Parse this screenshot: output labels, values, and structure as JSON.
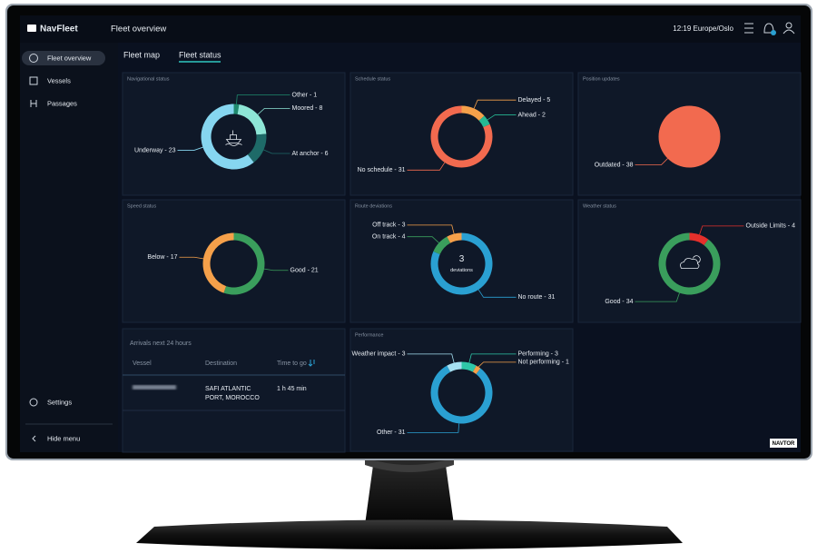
{
  "header": {
    "brand": "NavFleet",
    "page_title": "Fleet overview",
    "time": "12:19 Europe/Oslo"
  },
  "sidebar": {
    "items": [
      "Fleet overview",
      "Vessels",
      "Passages"
    ],
    "settings": "Settings",
    "hide_menu": "Hide menu"
  },
  "tabs": [
    "Fleet map",
    "Fleet status"
  ],
  "panels": [
    {
      "title": "Navigational status",
      "type": "donut",
      "segments": [
        {
          "label": "Other - 1",
          "value": 1,
          "color": "#1f8a6e"
        },
        {
          "label": "Moored - 8",
          "value": 8,
          "color": "#8ee6d6"
        },
        {
          "label": "At anchor - 6",
          "value": 6,
          "color": "#1e6a68"
        },
        {
          "label": "Underway - 23",
          "value": 23,
          "color": "#86d6f0"
        }
      ]
    },
    {
      "title": "Schedule status",
      "type": "donut",
      "segments": [
        {
          "label": "Delayed - 5",
          "value": 5,
          "color": "#f5a04a"
        },
        {
          "label": "Ahead - 2",
          "value": 2,
          "color": "#26b893"
        },
        {
          "label": "No schedule - 31",
          "value": 31,
          "color": "#f26a4f"
        }
      ]
    },
    {
      "title": "Position updates",
      "type": "pie",
      "segments": [
        {
          "label": "Outdated - 38",
          "value": 38,
          "color": "#f26a4f"
        }
      ]
    },
    {
      "title": "Speed status",
      "type": "donut",
      "segments": [
        {
          "label": "Good - 21",
          "value": 21,
          "color": "#3a9e5c"
        },
        {
          "label": "Below - 17",
          "value": 17,
          "color": "#f5a04a"
        }
      ]
    },
    {
      "title": "Route deviations",
      "type": "donut",
      "center_value": 3,
      "center_label": "deviations",
      "segments": [
        {
          "label": "No route - 31",
          "value": 31,
          "color": "#2aa0d2"
        },
        {
          "label": "On track - 4",
          "value": 4,
          "color": "#3a9e5c"
        },
        {
          "label": "Off track - 3",
          "value": 3,
          "color": "#f5a04a"
        }
      ]
    },
    {
      "title": "Weather status",
      "type": "donut",
      "segments": [
        {
          "label": "Outside Limits - 4",
          "value": 4,
          "color": "#e5302b"
        },
        {
          "label": "Good - 34",
          "value": 34,
          "color": "#3a9e5c"
        }
      ]
    },
    {
      "title": "Performance",
      "type": "donut",
      "segments": [
        {
          "label": "Performing - 3",
          "value": 3,
          "color": "#2fc7a8"
        },
        {
          "label": "Not performing - 1",
          "value": 1,
          "color": "#f5a04a"
        },
        {
          "label": "Other - 31",
          "value": 31,
          "color": "#2aa0d2"
        },
        {
          "label": "Weather impact - 3",
          "value": 3,
          "color": "#a6e0f2"
        }
      ]
    }
  ],
  "arrivals": {
    "title": "Arrivals next 24 hours",
    "columns": [
      "Vessel",
      "Destination",
      "Time to go"
    ],
    "rows": [
      {
        "destination": [
          "SAFI ATLANTIC",
          "PORT, MOROCCO"
        ],
        "time_to_go": "1 h 45 min"
      }
    ]
  },
  "bezel": {
    "brand": "NAVTOR"
  }
}
